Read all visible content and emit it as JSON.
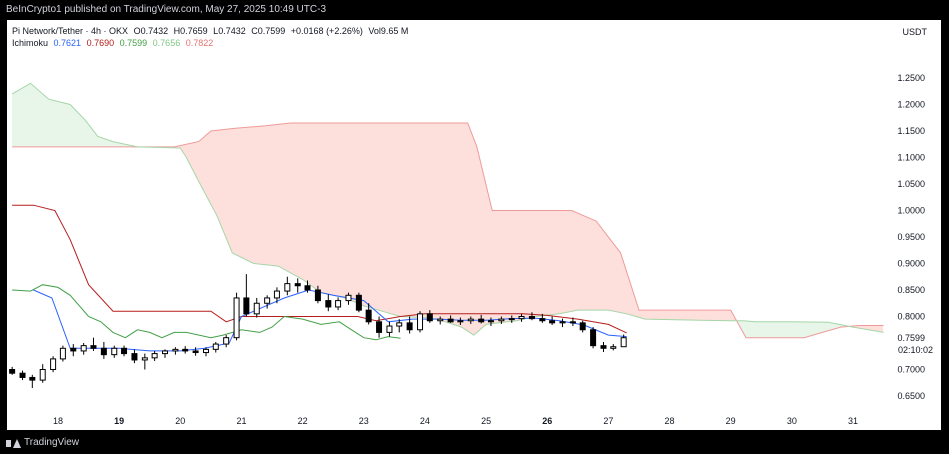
{
  "header": {
    "publisher": "BeInCrypto1 published on TradingView.com, May 27, 2025 10:49 UTC-3"
  },
  "legend": {
    "symbol": "Pi Network/Tether · 4h · OKX",
    "o_label": "O",
    "o_value": "0.7432",
    "h_label": "H",
    "h_value": "0.7659",
    "l_label": "L",
    "l_value": "0.7432",
    "c_label": "C",
    "c_value": "0.7599",
    "change": "+0.0168 (+2.26%)",
    "vol_label": "Vol",
    "vol_value": "9.65 M",
    "indicator": "Ichimoku",
    "ind_values": [
      "0.7621",
      "0.7690",
      "0.7599",
      "0.7656",
      "0.7822"
    ]
  },
  "footer": {
    "brand": "TradingView"
  },
  "colors": {
    "tenkan": "#2962ff",
    "kijun": "#b71c1c",
    "chikou": "#43a047",
    "span_a": "#a5d6a7",
    "span_b": "#ef9a9a",
    "cloud_bull": "#e8f5e9",
    "cloud_bear": "#fde0dc",
    "price_label_bg": "#131722"
  },
  "chart_data": {
    "type": "candlestick",
    "unit": "USDT",
    "ylim": [
      0.6,
      1.27
    ],
    "y_ticks": [
      "1.2500",
      "1.2000",
      "1.1500",
      "1.1000",
      "1.0500",
      "1.0000",
      "0.9500",
      "0.9000",
      "0.8500",
      "0.8000",
      "0.7500",
      "0.7000",
      "0.6500"
    ],
    "x_ticks": [
      "18",
      "19",
      "20",
      "21",
      "22",
      "23",
      "24",
      "25",
      "26",
      "27",
      "28",
      "29",
      "30",
      "31"
    ],
    "x_ticks_bold": [
      "19",
      "26"
    ],
    "x_range": [
      17.2,
      31.6
    ],
    "last_price": "0.7599",
    "countdown": "02:10:02",
    "candles": [
      [
        17.25,
        0.7,
        0.705,
        0.69,
        0.693
      ],
      [
        17.42,
        0.693,
        0.698,
        0.68,
        0.685
      ],
      [
        17.58,
        0.685,
        0.69,
        0.665,
        0.68
      ],
      [
        17.75,
        0.68,
        0.71,
        0.675,
        0.7
      ],
      [
        17.92,
        0.7,
        0.725,
        0.695,
        0.72
      ],
      [
        18.08,
        0.72,
        0.745,
        0.715,
        0.74
      ],
      [
        18.25,
        0.74,
        0.748,
        0.725,
        0.735
      ],
      [
        18.42,
        0.735,
        0.75,
        0.728,
        0.745
      ],
      [
        18.58,
        0.745,
        0.76,
        0.735,
        0.74
      ],
      [
        18.75,
        0.74,
        0.752,
        0.72,
        0.728
      ],
      [
        18.92,
        0.728,
        0.745,
        0.722,
        0.74
      ],
      [
        19.08,
        0.74,
        0.745,
        0.725,
        0.73
      ],
      [
        19.25,
        0.73,
        0.738,
        0.712,
        0.718
      ],
      [
        19.42,
        0.718,
        0.73,
        0.7,
        0.722
      ],
      [
        19.58,
        0.722,
        0.735,
        0.716,
        0.73
      ],
      [
        19.75,
        0.73,
        0.738,
        0.722,
        0.735
      ],
      [
        19.92,
        0.735,
        0.742,
        0.728,
        0.738
      ],
      [
        20.08,
        0.738,
        0.744,
        0.73,
        0.735
      ],
      [
        20.25,
        0.735,
        0.742,
        0.726,
        0.732
      ],
      [
        20.42,
        0.732,
        0.742,
        0.725,
        0.738
      ],
      [
        20.58,
        0.738,
        0.752,
        0.732,
        0.748
      ],
      [
        20.75,
        0.748,
        0.765,
        0.742,
        0.76
      ],
      [
        20.92,
        0.76,
        0.845,
        0.755,
        0.835
      ],
      [
        21.08,
        0.835,
        0.88,
        0.8,
        0.805
      ],
      [
        21.25,
        0.805,
        0.835,
        0.798,
        0.825
      ],
      [
        21.42,
        0.825,
        0.84,
        0.815,
        0.835
      ],
      [
        21.58,
        0.835,
        0.855,
        0.825,
        0.848
      ],
      [
        21.75,
        0.848,
        0.875,
        0.84,
        0.862
      ],
      [
        21.92,
        0.862,
        0.872,
        0.845,
        0.858
      ],
      [
        22.08,
        0.858,
        0.868,
        0.845,
        0.85
      ],
      [
        22.25,
        0.85,
        0.858,
        0.825,
        0.83
      ],
      [
        22.42,
        0.83,
        0.842,
        0.81,
        0.818
      ],
      [
        22.58,
        0.818,
        0.836,
        0.812,
        0.83
      ],
      [
        22.75,
        0.83,
        0.845,
        0.822,
        0.84
      ],
      [
        22.92,
        0.84,
        0.845,
        0.808,
        0.812
      ],
      [
        23.08,
        0.812,
        0.825,
        0.785,
        0.79
      ],
      [
        23.25,
        0.79,
        0.8,
        0.76,
        0.77
      ],
      [
        23.42,
        0.77,
        0.79,
        0.762,
        0.782
      ],
      [
        23.58,
        0.782,
        0.795,
        0.77,
        0.788
      ],
      [
        23.75,
        0.788,
        0.8,
        0.768,
        0.775
      ],
      [
        23.92,
        0.775,
        0.81,
        0.77,
        0.805
      ],
      [
        24.08,
        0.805,
        0.812,
        0.788,
        0.792
      ],
      [
        24.25,
        0.792,
        0.8,
        0.785,
        0.795
      ],
      [
        24.42,
        0.795,
        0.802,
        0.788,
        0.79
      ],
      [
        24.58,
        0.79,
        0.798,
        0.784,
        0.792
      ],
      [
        24.75,
        0.792,
        0.8,
        0.786,
        0.795
      ],
      [
        24.92,
        0.795,
        0.803,
        0.787,
        0.79
      ],
      [
        25.08,
        0.79,
        0.798,
        0.782,
        0.792
      ],
      [
        25.25,
        0.792,
        0.8,
        0.786,
        0.795
      ],
      [
        25.42,
        0.795,
        0.802,
        0.788,
        0.796
      ],
      [
        25.58,
        0.796,
        0.805,
        0.79,
        0.8
      ],
      [
        25.75,
        0.8,
        0.808,
        0.793,
        0.796
      ],
      [
        25.92,
        0.796,
        0.805,
        0.788,
        0.792
      ],
      [
        26.08,
        0.792,
        0.8,
        0.784,
        0.788
      ],
      [
        26.25,
        0.788,
        0.796,
        0.78,
        0.79
      ],
      [
        26.42,
        0.79,
        0.798,
        0.782,
        0.788
      ],
      [
        26.58,
        0.788,
        0.792,
        0.77,
        0.775
      ],
      [
        26.75,
        0.775,
        0.78,
        0.74,
        0.745
      ],
      [
        26.92,
        0.745,
        0.752,
        0.733,
        0.74
      ],
      [
        27.08,
        0.74,
        0.748,
        0.736,
        0.743
      ],
      [
        27.25,
        0.743,
        0.766,
        0.743,
        0.76
      ]
    ],
    "lines": {
      "tenkan": [
        [
          17.6,
          0.85
        ],
        [
          17.9,
          0.835
        ],
        [
          18.2,
          0.74
        ],
        [
          18.6,
          0.74
        ],
        [
          19.0,
          0.74
        ],
        [
          19.5,
          0.735
        ],
        [
          20.0,
          0.735
        ],
        [
          20.4,
          0.74
        ],
        [
          20.8,
          0.75
        ],
        [
          21.0,
          0.8
        ],
        [
          21.3,
          0.815
        ],
        [
          21.7,
          0.835
        ],
        [
          22.1,
          0.85
        ],
        [
          22.5,
          0.84
        ],
        [
          23.0,
          0.83
        ],
        [
          23.4,
          0.79
        ],
        [
          23.8,
          0.795
        ],
        [
          24.2,
          0.795
        ],
        [
          24.6,
          0.793
        ],
        [
          25.0,
          0.793
        ],
        [
          25.4,
          0.796
        ],
        [
          25.8,
          0.797
        ],
        [
          26.2,
          0.792
        ],
        [
          26.6,
          0.784
        ],
        [
          27.0,
          0.765
        ],
        [
          27.3,
          0.762
        ]
      ],
      "kijun": [
        [
          17.25,
          1.01
        ],
        [
          17.6,
          1.01
        ],
        [
          17.95,
          1.0
        ],
        [
          18.2,
          0.945
        ],
        [
          18.5,
          0.86
        ],
        [
          18.9,
          0.81
        ],
        [
          19.0,
          0.81
        ],
        [
          20.5,
          0.81
        ],
        [
          20.75,
          0.79
        ],
        [
          21.0,
          0.8
        ],
        [
          22.9,
          0.8
        ],
        [
          23.2,
          0.792
        ],
        [
          23.6,
          0.8
        ],
        [
          24.0,
          0.805
        ],
        [
          25.0,
          0.805
        ],
        [
          25.6,
          0.805
        ],
        [
          26.0,
          0.802
        ],
        [
          26.5,
          0.795
        ],
        [
          27.0,
          0.785
        ],
        [
          27.3,
          0.769
        ]
      ],
      "chikou": [
        [
          17.25,
          0.85
        ],
        [
          17.55,
          0.848
        ],
        [
          17.75,
          0.86
        ],
        [
          18.0,
          0.855
        ],
        [
          18.2,
          0.84
        ],
        [
          18.5,
          0.8
        ],
        [
          18.7,
          0.79
        ],
        [
          18.9,
          0.77
        ],
        [
          19.1,
          0.76
        ],
        [
          19.3,
          0.775
        ],
        [
          19.5,
          0.77
        ],
        [
          19.7,
          0.76
        ],
        [
          19.9,
          0.77
        ],
        [
          20.1,
          0.77
        ],
        [
          20.5,
          0.76
        ],
        [
          20.7,
          0.765
        ],
        [
          21.0,
          0.775
        ],
        [
          21.3,
          0.77
        ],
        [
          21.5,
          0.78
        ],
        [
          21.7,
          0.8
        ],
        [
          22.0,
          0.795
        ],
        [
          22.3,
          0.785
        ],
        [
          22.6,
          0.79
        ],
        [
          22.8,
          0.775
        ],
        [
          23.0,
          0.76
        ],
        [
          23.2,
          0.756
        ],
        [
          23.4,
          0.762
        ],
        [
          23.6,
          0.759
        ]
      ],
      "span_a": [
        [
          17.25,
          1.22
        ],
        [
          17.55,
          1.24
        ],
        [
          17.85,
          1.21
        ],
        [
          18.2,
          1.2
        ],
        [
          18.45,
          1.17
        ],
        [
          18.65,
          1.14
        ],
        [
          18.9,
          1.13
        ],
        [
          19.3,
          1.12
        ],
        [
          20.0,
          1.118
        ],
        [
          20.1,
          1.1
        ],
        [
          20.3,
          1.055
        ],
        [
          20.6,
          0.99
        ],
        [
          20.85,
          0.92
        ],
        [
          21.2,
          0.9
        ],
        [
          21.6,
          0.895
        ],
        [
          22.0,
          0.87
        ],
        [
          22.3,
          0.845
        ],
        [
          22.7,
          0.835
        ],
        [
          23.0,
          0.82
        ],
        [
          23.3,
          0.81
        ],
        [
          23.6,
          0.8
        ],
        [
          24.0,
          0.798
        ],
        [
          24.2,
          0.795
        ],
        [
          24.6,
          0.78
        ],
        [
          24.8,
          0.765
        ],
        [
          25.0,
          0.785
        ],
        [
          25.5,
          0.792
        ],
        [
          25.8,
          0.8
        ],
        [
          26.2,
          0.805
        ],
        [
          26.5,
          0.812
        ],
        [
          27.0,
          0.812
        ],
        [
          27.3,
          0.805
        ],
        [
          27.6,
          0.795
        ],
        [
          28.5,
          0.793
        ],
        [
          29.0,
          0.792
        ],
        [
          29.2,
          0.792
        ],
        [
          29.4,
          0.79
        ],
        [
          30.0,
          0.79
        ],
        [
          30.6,
          0.789
        ],
        [
          31.0,
          0.78
        ],
        [
          31.5,
          0.77
        ]
      ],
      "span_b": [
        [
          17.25,
          1.12
        ],
        [
          19.9,
          1.12
        ],
        [
          20.3,
          1.13
        ],
        [
          20.5,
          1.15
        ],
        [
          20.9,
          1.155
        ],
        [
          21.4,
          1.16
        ],
        [
          21.8,
          1.165
        ],
        [
          24.3,
          1.165
        ],
        [
          24.7,
          1.165
        ],
        [
          24.85,
          1.12
        ],
        [
          25.1,
          1.0
        ],
        [
          25.4,
          1.0
        ],
        [
          26.4,
          1.0
        ],
        [
          26.8,
          0.98
        ],
        [
          27.2,
          0.92
        ],
        [
          27.5,
          0.812
        ],
        [
          29.0,
          0.812
        ],
        [
          29.25,
          0.76
        ],
        [
          30.2,
          0.76
        ],
        [
          30.5,
          0.77
        ],
        [
          30.8,
          0.78
        ],
        [
          31.1,
          0.783
        ],
        [
          31.5,
          0.783
        ]
      ]
    }
  }
}
